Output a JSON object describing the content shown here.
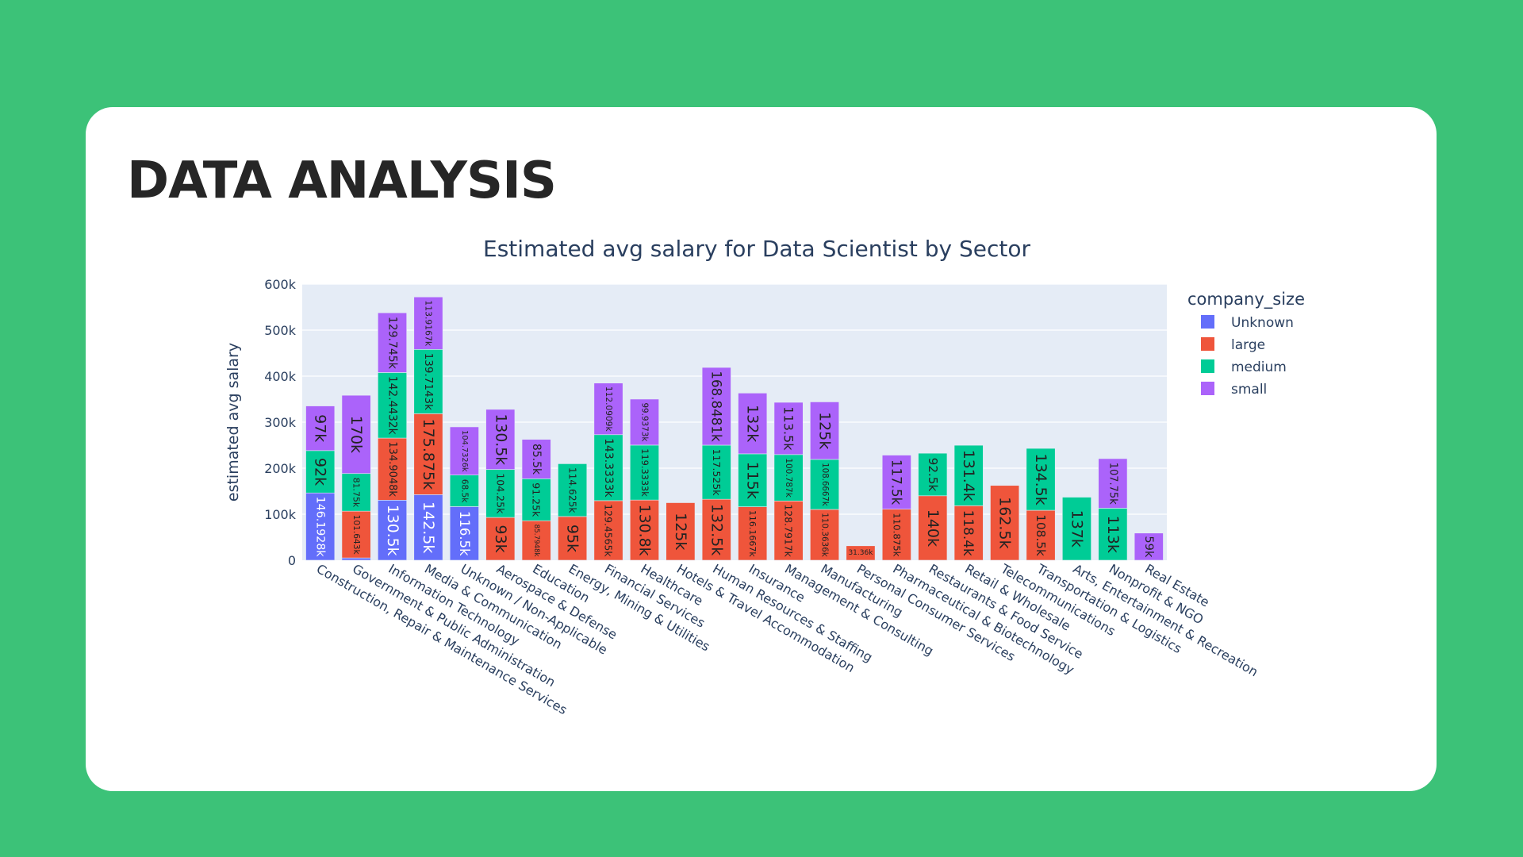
{
  "page": {
    "heading": "DATA ANALYSIS"
  },
  "chart_data": {
    "type": "bar",
    "barmode": "stack",
    "title": "Estimated avg salary for Data Scientist by Sector",
    "xlabel": "",
    "ylabel": "estimated avg salary",
    "ylim": [
      0,
      600000
    ],
    "yticks": [
      "0",
      "100k",
      "200k",
      "300k",
      "400k",
      "500k",
      "600k"
    ],
    "grid": true,
    "legend_title": "company_size",
    "legend_position": "right",
    "categories": [
      "Construction, Repair & Maintenance Services",
      "Government & Public Administration",
      "Information Technology",
      "Media & Communication",
      "Unknown / Non-Applicable",
      "Aerospace & Defense",
      "Education",
      "Energy, Mining & Utilities",
      "Financial Services",
      "Healthcare",
      "Hotels & Travel Accommodation",
      "Human Resources & Staffing",
      "Insurance",
      "Management & Consulting",
      "Manufacturing",
      "Personal Consumer Services",
      "Pharmaceutical & Biotechnology",
      "Restaurants & Food Service",
      "Retail & Wholesale",
      "Telecommunications",
      "Transportation & Logistics",
      "Arts, Entertainment & Recreation",
      "Nonprofit & NGO",
      "Real Estate"
    ],
    "series": [
      {
        "name": "Unknown",
        "color": "#636efa",
        "values": [
          146192.8,
          5000,
          130500,
          142500,
          116500,
          null,
          null,
          null,
          null,
          null,
          null,
          null,
          null,
          null,
          null,
          null,
          null,
          null,
          null,
          null,
          null,
          null,
          null,
          null
        ],
        "labels": [
          "146.1928k",
          "",
          "130.5k",
          "142.5k",
          "116.5k",
          "",
          "",
          "",
          "",
          "",
          "",
          "",
          "",
          "",
          "",
          "",
          "",
          "",
          "",
          "",
          "",
          "",
          "",
          ""
        ]
      },
      {
        "name": "large",
        "color": "#ef553b",
        "values": [
          null,
          101643,
          134904.8,
          175875,
          null,
          93000,
          85794.8,
          95000,
          129456.5,
          130800,
          125000,
          132500,
          116166.7,
          128791.7,
          110363.6,
          31360,
          110875,
          140000,
          118400,
          162500,
          108500,
          null,
          null,
          null
        ],
        "labels": [
          "",
          "101.643k",
          "134.9048k",
          "175.875k",
          "",
          "93k",
          "85.7948k",
          "95k",
          "129.4565k",
          "130.8k",
          "125k",
          "132.5k",
          "116.1667k",
          "128.7917k",
          "110.3636k",
          "31.36k",
          "110.875k",
          "140k",
          "118.4k",
          "162.5k",
          "108.5k",
          "",
          "",
          ""
        ]
      },
      {
        "name": "medium",
        "color": "#00cc96",
        "values": [
          92000,
          81750,
          142443.2,
          139714.3,
          68500,
          104250,
          91250,
          114625,
          143333.3,
          119333.3,
          null,
          117525,
          115000,
          100787,
          108666.7,
          null,
          null,
          92500,
          131400,
          null,
          134500,
          137000,
          113000,
          null
        ],
        "labels": [
          "92k",
          "81.75k",
          "142.4432k",
          "139.7143k",
          "68.5k",
          "104.25k",
          "91.25k",
          "114.625k",
          "143.3333k",
          "119.3333k",
          "",
          "117.525k",
          "115k",
          "100.787k",
          "108.6667k",
          "",
          "",
          "92.5k",
          "131.4k",
          "",
          "134.5k",
          "137k",
          "113k",
          ""
        ]
      },
      {
        "name": "small",
        "color": "#ab63fa",
        "values": [
          97000,
          170000,
          129745,
          113916.7,
          104732.6,
          130500,
          85500,
          null,
          112090.9,
          99937.3,
          null,
          168848.1,
          132000,
          113500,
          125000,
          null,
          117500,
          null,
          null,
          null,
          null,
          null,
          107750,
          59000
        ],
        "labels": [
          "97k",
          "170k",
          "129.745k",
          "113.9167k",
          "104.7326k",
          "130.5k",
          "85.5k",
          "",
          "112.0909k",
          "99.9373k",
          "",
          "168.8481k",
          "132k",
          "113.5k",
          "125k",
          "",
          "117.5k",
          "",
          "",
          "",
          "",
          "",
          "107.75k",
          "59k"
        ]
      }
    ]
  }
}
